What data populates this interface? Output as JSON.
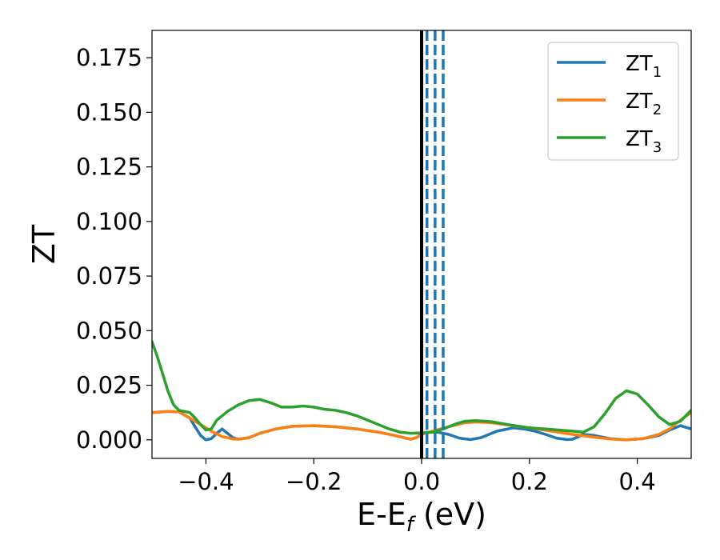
{
  "chart_data": {
    "type": "line",
    "xlabel_main": "E-E",
    "xlabel_sub": "f",
    "xlabel_unit": " (eV)",
    "ylabel": "ZT",
    "xlim": [
      -0.5,
      0.5
    ],
    "ylim": [
      -0.0085,
      0.1875
    ],
    "xticks": [
      -0.4,
      -0.2,
      0.0,
      0.2,
      0.4
    ],
    "xtick_labels": [
      "−0.4",
      "−0.2",
      "0.0",
      "0.2",
      "0.4"
    ],
    "yticks": [
      0.0,
      0.025,
      0.05,
      0.075,
      0.1,
      0.125,
      0.15,
      0.175
    ],
    "ytick_labels": [
      "0.000",
      "0.025",
      "0.050",
      "0.075",
      "0.100",
      "0.125",
      "0.150",
      "0.175"
    ],
    "grid": false,
    "legend_position": "top-right",
    "vline_solid": {
      "x": 0.0,
      "color": "#000000"
    },
    "vlines_dashed": {
      "x": [
        0.01,
        0.025,
        0.04
      ],
      "color": "#1f77b4"
    },
    "series": [
      {
        "name_main": "ZT",
        "name_sub": "1",
        "color": "#1f77b4",
        "points": [
          [
            -0.5,
            0.0125
          ],
          [
            -0.47,
            0.013
          ],
          [
            -0.45,
            0.0128
          ],
          [
            -0.43,
            0.01
          ],
          [
            -0.42,
            0.006
          ],
          [
            -0.41,
            0.002
          ],
          [
            -0.4,
            0.0
          ],
          [
            -0.39,
            0.0005
          ],
          [
            -0.38,
            0.003
          ],
          [
            -0.37,
            0.005
          ],
          [
            -0.36,
            0.003
          ],
          [
            -0.35,
            0.001
          ],
          [
            -0.34,
            0.0003
          ],
          [
            -0.32,
            0.001
          ],
          [
            -0.3,
            0.003
          ],
          [
            -0.27,
            0.005
          ],
          [
            -0.24,
            0.0062
          ],
          [
            -0.2,
            0.0065
          ],
          [
            -0.16,
            0.006
          ],
          [
            -0.12,
            0.005
          ],
          [
            -0.08,
            0.0035
          ],
          [
            -0.05,
            0.002
          ],
          [
            -0.03,
            0.0008
          ],
          [
            -0.02,
            0.0003
          ],
          [
            -0.01,
            0.001
          ],
          [
            0.0,
            0.0025
          ],
          [
            0.01,
            0.0035
          ],
          [
            0.03,
            0.0035
          ],
          [
            0.05,
            0.0025
          ],
          [
            0.07,
            0.0008
          ],
          [
            0.09,
            0.0001
          ],
          [
            0.11,
            0.001
          ],
          [
            0.14,
            0.004
          ],
          [
            0.17,
            0.0055
          ],
          [
            0.19,
            0.005
          ],
          [
            0.21,
            0.004
          ],
          [
            0.23,
            0.0025
          ],
          [
            0.25,
            0.0008
          ],
          [
            0.27,
            0.0001
          ],
          [
            0.28,
            0.0003
          ],
          [
            0.3,
            0.0025
          ],
          [
            0.32,
            0.002
          ],
          [
            0.35,
            0.0005
          ],
          [
            0.38,
            0.0
          ],
          [
            0.41,
            0.0005
          ],
          [
            0.44,
            0.002
          ],
          [
            0.46,
            0.0045
          ],
          [
            0.48,
            0.0065
          ],
          [
            0.5,
            0.005
          ]
        ]
      },
      {
        "name_main": "ZT",
        "name_sub": "2",
        "color": "#ff7f0e",
        "points": [
          [
            -0.5,
            0.0125
          ],
          [
            -0.47,
            0.013
          ],
          [
            -0.45,
            0.0128
          ],
          [
            -0.43,
            0.01
          ],
          [
            -0.41,
            0.007
          ],
          [
            -0.39,
            0.004
          ],
          [
            -0.37,
            0.0015
          ],
          [
            -0.35,
            0.0004
          ],
          [
            -0.34,
            0.0003
          ],
          [
            -0.32,
            0.001
          ],
          [
            -0.3,
            0.003
          ],
          [
            -0.27,
            0.005
          ],
          [
            -0.24,
            0.0062
          ],
          [
            -0.2,
            0.0065
          ],
          [
            -0.16,
            0.006
          ],
          [
            -0.12,
            0.005
          ],
          [
            -0.08,
            0.0035
          ],
          [
            -0.05,
            0.002
          ],
          [
            -0.03,
            0.0008
          ],
          [
            -0.02,
            0.0003
          ],
          [
            -0.01,
            0.001
          ],
          [
            0.0,
            0.0025
          ],
          [
            0.02,
            0.004
          ],
          [
            0.05,
            0.006
          ],
          [
            0.08,
            0.0078
          ],
          [
            0.1,
            0.0082
          ],
          [
            0.13,
            0.0078
          ],
          [
            0.16,
            0.0068
          ],
          [
            0.2,
            0.0055
          ],
          [
            0.24,
            0.004
          ],
          [
            0.28,
            0.0025
          ],
          [
            0.32,
            0.0012
          ],
          [
            0.35,
            0.0004
          ],
          [
            0.38,
            0.0
          ],
          [
            0.41,
            0.0005
          ],
          [
            0.44,
            0.0025
          ],
          [
            0.46,
            0.005
          ],
          [
            0.48,
            0.009
          ],
          [
            0.5,
            0.0125
          ]
        ]
      },
      {
        "name_main": "ZT",
        "name_sub": "3",
        "color": "#2ca02c",
        "points": [
          [
            -0.5,
            0.045
          ],
          [
            -0.49,
            0.038
          ],
          [
            -0.48,
            0.03
          ],
          [
            -0.47,
            0.022
          ],
          [
            -0.46,
            0.016
          ],
          [
            -0.45,
            0.0135
          ],
          [
            -0.44,
            0.013
          ],
          [
            -0.43,
            0.0125
          ],
          [
            -0.42,
            0.01
          ],
          [
            -0.41,
            0.007
          ],
          [
            -0.4,
            0.0045
          ],
          [
            -0.39,
            0.005
          ],
          [
            -0.38,
            0.009
          ],
          [
            -0.36,
            0.013
          ],
          [
            -0.34,
            0.016
          ],
          [
            -0.32,
            0.018
          ],
          [
            -0.3,
            0.0185
          ],
          [
            -0.28,
            0.017
          ],
          [
            -0.26,
            0.015
          ],
          [
            -0.24,
            0.015
          ],
          [
            -0.22,
            0.0155
          ],
          [
            -0.2,
            0.015
          ],
          [
            -0.18,
            0.014
          ],
          [
            -0.16,
            0.0135
          ],
          [
            -0.14,
            0.0125
          ],
          [
            -0.12,
            0.011
          ],
          [
            -0.1,
            0.009
          ],
          [
            -0.08,
            0.007
          ],
          [
            -0.06,
            0.005
          ],
          [
            -0.04,
            0.0035
          ],
          [
            -0.02,
            0.003
          ],
          [
            0.0,
            0.0032
          ],
          [
            0.02,
            0.0035
          ],
          [
            0.04,
            0.005
          ],
          [
            0.06,
            0.007
          ],
          [
            0.08,
            0.0085
          ],
          [
            0.1,
            0.0088
          ],
          [
            0.13,
            0.0083
          ],
          [
            0.16,
            0.007
          ],
          [
            0.2,
            0.0055
          ],
          [
            0.24,
            0.0048
          ],
          [
            0.28,
            0.004
          ],
          [
            0.3,
            0.0035
          ],
          [
            0.32,
            0.006
          ],
          [
            0.34,
            0.012
          ],
          [
            0.36,
            0.019
          ],
          [
            0.38,
            0.0225
          ],
          [
            0.4,
            0.021
          ],
          [
            0.42,
            0.016
          ],
          [
            0.44,
            0.0105
          ],
          [
            0.46,
            0.007
          ],
          [
            0.48,
            0.0085
          ],
          [
            0.5,
            0.0135
          ]
        ]
      }
    ]
  }
}
